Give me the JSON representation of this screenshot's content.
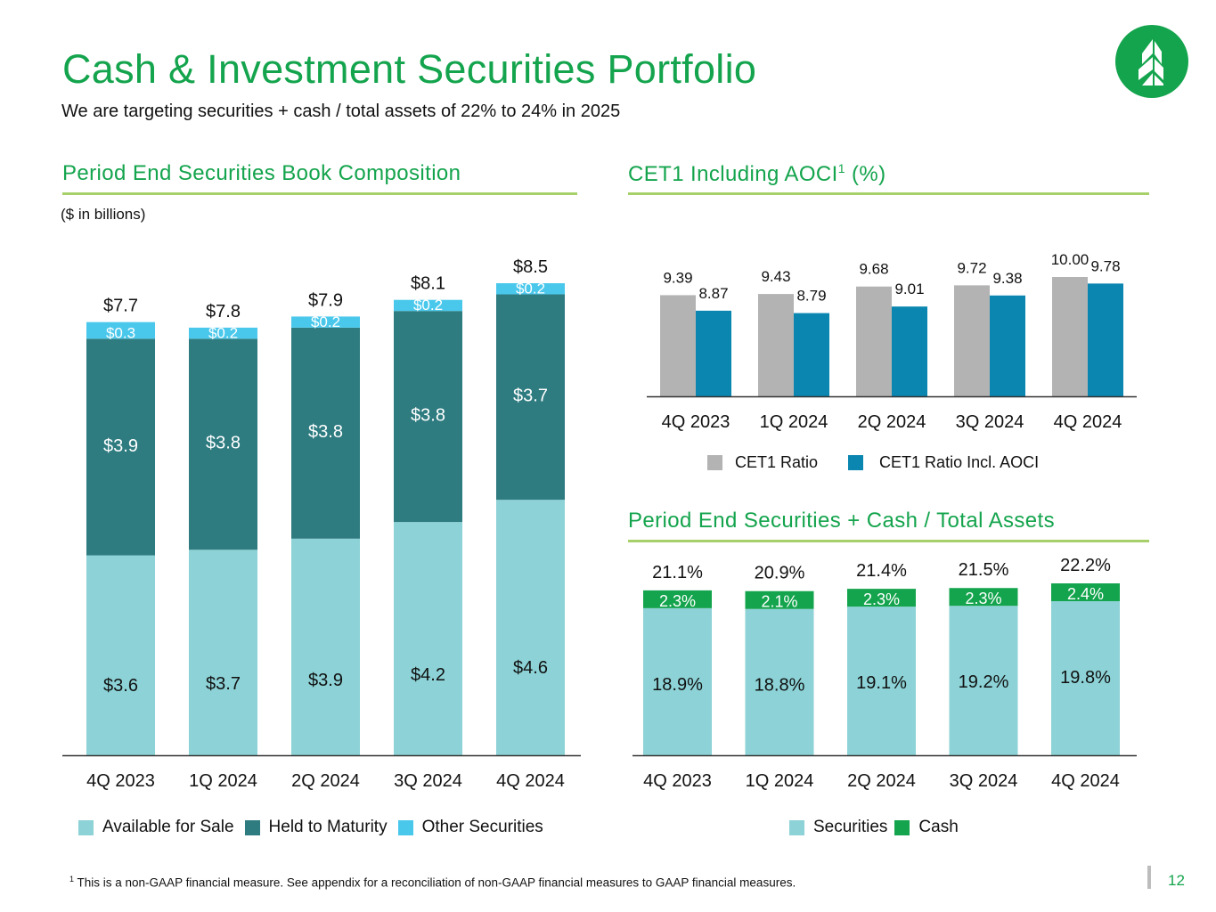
{
  "header": {
    "title": "Cash & Investment Securities Portfolio",
    "subtitle": "We are targeting securities + cash / total assets of 22% to 24% in 2025",
    "logo_icon": "tree-logo-icon"
  },
  "colors": {
    "brand_green": "#14a44d",
    "rule_green": "#a8d06a",
    "afs": "#8cd2d6",
    "htm": "#2e7b80",
    "other": "#4ac8ec",
    "cet1": "#b3b3b3",
    "cet1_aoci": "#0b86b0",
    "securities": "#8cd2d6",
    "cash": "#14a44d"
  },
  "left_section": {
    "title": "Period End Securities Book Composition",
    "units": "($ in billions)"
  },
  "cet1_section": {
    "title_main": "CET1 Including AOCI",
    "title_sup": "1",
    "title_suffix": " (%)"
  },
  "ratio_section": {
    "title": "Period End Securities + Cash / Total Assets"
  },
  "chart_data": [
    {
      "type": "bar",
      "stacked": true,
      "title": "Period End Securities Book Composition",
      "ylabel": "$ in billions",
      "categories": [
        "4Q 2023",
        "1Q 2024",
        "2Q 2024",
        "3Q 2024",
        "4Q 2024"
      ],
      "series": [
        {
          "name": "Available for Sale",
          "values": [
            3.6,
            3.7,
            3.9,
            4.2,
            4.6
          ],
          "labels": [
            "$3.6",
            "$3.7",
            "$3.9",
            "$4.2",
            "$4.6"
          ]
        },
        {
          "name": "Held to Maturity",
          "values": [
            3.9,
            3.8,
            3.8,
            3.8,
            3.7
          ],
          "labels": [
            "$3.9",
            "$3.8",
            "$3.8",
            "$3.8",
            "$3.7"
          ]
        },
        {
          "name": "Other Securities",
          "values": [
            0.3,
            0.2,
            0.2,
            0.2,
            0.2
          ],
          "labels": [
            "$0.3",
            "$0.2",
            "$0.2",
            "$0.2",
            "$0.2"
          ]
        }
      ],
      "totals": [
        7.7,
        7.8,
        7.9,
        8.1,
        8.5
      ],
      "total_labels": [
        "$7.7",
        "$7.8",
        "$7.9",
        "$8.1",
        "$8.5"
      ],
      "ylim": [
        0,
        8.5
      ],
      "grid": false,
      "legend": "bottom"
    },
    {
      "type": "bar",
      "stacked": false,
      "title": "CET1 Including AOCI (%)",
      "categories": [
        "4Q 2023",
        "1Q 2024",
        "2Q 2024",
        "3Q 2024",
        "4Q 2024"
      ],
      "series": [
        {
          "name": "CET1 Ratio",
          "values": [
            9.39,
            9.43,
            9.68,
            9.72,
            10.0
          ],
          "labels": [
            "9.39",
            "9.43",
            "9.68",
            "9.72",
            "10.00"
          ]
        },
        {
          "name": "CET1 Ratio Incl. AOCI",
          "values": [
            8.87,
            8.79,
            9.01,
            9.38,
            9.78
          ],
          "labels": [
            "8.87",
            "8.79",
            "9.01",
            "9.38",
            "9.78"
          ]
        }
      ],
      "ylim": [
        6.0,
        10.0
      ],
      "grid": false,
      "legend": "bottom"
    },
    {
      "type": "bar",
      "stacked": true,
      "title": "Period End Securities + Cash / Total Assets",
      "categories": [
        "4Q 2023",
        "1Q 2024",
        "2Q 2024",
        "3Q 2024",
        "4Q 2024"
      ],
      "series": [
        {
          "name": "Securities",
          "values": [
            18.9,
            18.8,
            19.1,
            19.2,
            19.8
          ],
          "labels": [
            "18.9%",
            "18.8%",
            "19.1%",
            "19.2%",
            "19.8%"
          ]
        },
        {
          "name": "Cash",
          "values": [
            2.3,
            2.1,
            2.3,
            2.3,
            2.4
          ],
          "labels": [
            "2.3%",
            "2.1%",
            "2.3%",
            "2.3%",
            "2.4%"
          ]
        }
      ],
      "totals": [
        21.1,
        20.9,
        21.4,
        21.5,
        22.2
      ],
      "total_labels": [
        "21.1%",
        "20.9%",
        "21.4%",
        "21.5%",
        "22.2%"
      ],
      "ylim": [
        0,
        22.2
      ],
      "grid": false,
      "legend": "bottom"
    }
  ],
  "footer": {
    "footnote_marker": "1",
    "footnote": " This is a non-GAAP financial measure. See appendix for a reconciliation of non-GAAP financial measures to GAAP financial measures.",
    "page_number": "12"
  }
}
